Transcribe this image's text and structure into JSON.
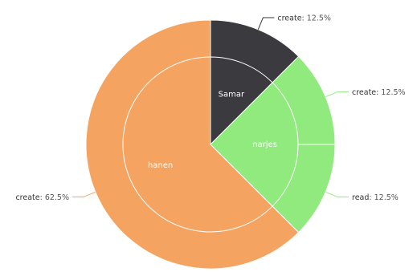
{
  "chart_data": {
    "type": "pie",
    "title": "",
    "inner": [
      {
        "name": "Samar",
        "value": 12.5,
        "color": "#3a3a3f"
      },
      {
        "name": "narjes",
        "value": 25,
        "color": "#90ea7e"
      },
      {
        "name": "hanen",
        "value": 62.5,
        "color": "#f4a460"
      }
    ],
    "outer": [
      {
        "parent": "Samar",
        "label": "create",
        "value": 12.5,
        "value_text": "12.5%",
        "color": "#3a3a3f"
      },
      {
        "parent": "narjes",
        "label": "create",
        "value": 12.5,
        "value_text": "12.5%",
        "color": "#90ea7e"
      },
      {
        "parent": "narjes",
        "label": "read",
        "value": 12.5,
        "value_text": "12.5%",
        "color": "#90ea7e"
      },
      {
        "parent": "hanen",
        "label": "create",
        "value": 62.5,
        "value_text": "62.5%",
        "color": "#f4a460"
      }
    ],
    "connector_color": "#90ea7e",
    "separator_color": "#ffffff"
  }
}
